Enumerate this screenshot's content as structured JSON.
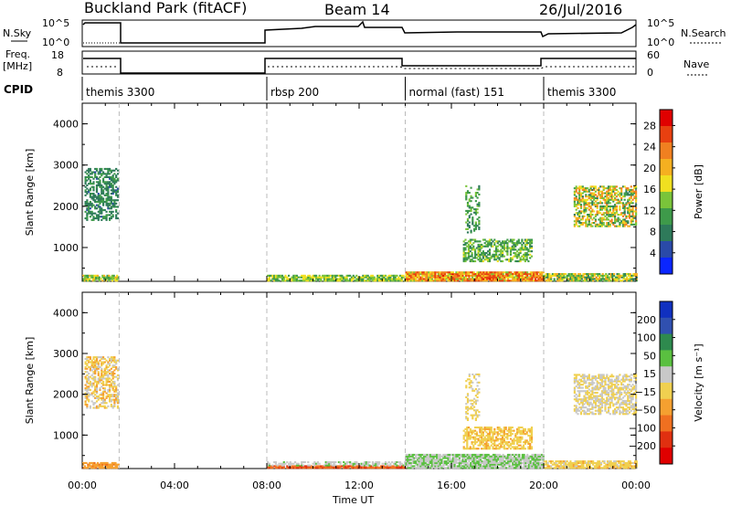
{
  "header": {
    "station": "Buckland Park (fitACF)",
    "beam": "Beam 14",
    "date": "26/Jul/2016"
  },
  "top_labels": {
    "nsky": "N.Sky",
    "nsky_top": "10^5",
    "nsky_bottom": "10^0",
    "freq_line1": "Freq.",
    "freq_line2": "[MHz]",
    "freq_top": "18",
    "freq_bottom": "8",
    "cpid": "CPID",
    "nsearch": "N.Search",
    "nsearch_top": "10^5",
    "nsearch_bottom": "10^0",
    "nave": "Nave",
    "nave_top": "60",
    "nave_bottom": "0"
  },
  "cpid_segments": [
    {
      "label": "themis 3300",
      "start_h": 0.0,
      "end_h": 1.6
    },
    {
      "label": "rbsp 200",
      "start_h": 8.0,
      "end_h": 14.0
    },
    {
      "label": "normal (fast) 151",
      "start_h": 14.0,
      "end_h": 20.0
    },
    {
      "label": "themis 3300",
      "start_h": 20.0,
      "end_h": 24.0
    }
  ],
  "xaxis": {
    "label": "Time UT",
    "ticks": [
      "00:00",
      "04:00",
      "08:00",
      "12:00",
      "16:00",
      "20:00",
      "00:00"
    ]
  },
  "colors": {
    "power": [
      "#0a26ff",
      "#2a4aa8",
      "#2e7a5a",
      "#3e9a4a",
      "#7ac43a",
      "#f0e020",
      "#f5b020",
      "#f08020",
      "#e84010",
      "#e00000"
    ],
    "velocity": [
      "#1030c0",
      "#3050b0",
      "#2e8a4e",
      "#5ac040",
      "#c8c8c8",
      "#f0d050",
      "#f5a030",
      "#f07020",
      "#e03010",
      "#e00000"
    ]
  },
  "chart_data": [
    {
      "type": "heatmap",
      "title": "Power",
      "ylabel": "Slant Range [km]",
      "ylim": [
        180,
        4500
      ],
      "yticks": [
        "1000",
        "2000",
        "3000",
        "4000"
      ],
      "xlim_hours": [
        0,
        24
      ],
      "colorbar": {
        "label": "Power [dB]",
        "ticks": [
          "4",
          "8",
          "12",
          "16",
          "20",
          "24",
          "28"
        ],
        "range": [
          0,
          31
        ]
      },
      "regions": [
        {
          "t": [
            0.1,
            1.55
          ],
          "r": [
            1650,
            2900
          ],
          "v": [
            6,
            11
          ],
          "density": 0.55
        },
        {
          "t": [
            0.0,
            1.55
          ],
          "r": [
            180,
            320
          ],
          "v": [
            10,
            20
          ],
          "density": 0.8
        },
        {
          "t": [
            8.0,
            14.0
          ],
          "r": [
            180,
            330
          ],
          "v": [
            10,
            18
          ],
          "density": 0.8
        },
        {
          "t": [
            14.0,
            20.0
          ],
          "r": [
            180,
            420
          ],
          "v": [
            14,
            28
          ],
          "density": 0.95
        },
        {
          "t": [
            16.5,
            19.5
          ],
          "r": [
            650,
            1200
          ],
          "v": [
            8,
            16
          ],
          "density": 0.55
        },
        {
          "t": [
            16.6,
            17.2
          ],
          "r": [
            1350,
            2500
          ],
          "v": [
            8,
            14
          ],
          "density": 0.3
        },
        {
          "t": [
            20.0,
            24.0
          ],
          "r": [
            180,
            350
          ],
          "v": [
            8,
            22
          ],
          "density": 0.8
        },
        {
          "t": [
            21.3,
            24.0
          ],
          "r": [
            1500,
            2500
          ],
          "v": [
            8,
            24
          ],
          "density": 0.6
        }
      ]
    },
    {
      "type": "heatmap",
      "title": "Velocity",
      "ylabel": "Slant Range [km]",
      "ylim": [
        180,
        4500
      ],
      "yticks": [
        "1000",
        "2000",
        "3000",
        "4000"
      ],
      "xlim_hours": [
        0,
        24
      ],
      "colorbar": {
        "label": "Velocity [m s⁻¹]",
        "ticks": [
          "200",
          "100",
          "50",
          "15",
          "−15",
          "−50",
          "−100",
          "−200"
        ],
        "range": [
          -250,
          250
        ]
      },
      "regions": [
        {
          "t": [
            0.1,
            1.55
          ],
          "r": [
            1650,
            2900
          ],
          "v": [
            -80,
            40
          ],
          "density": 0.55
        },
        {
          "t": [
            0.0,
            1.55
          ],
          "r": [
            180,
            320
          ],
          "v": [
            -110,
            -60
          ],
          "density": 0.8
        },
        {
          "t": [
            8.0,
            14.0
          ],
          "r": [
            180,
            240
          ],
          "v": [
            -180,
            -120
          ],
          "density": 0.9
        },
        {
          "t": [
            8.0,
            14.0
          ],
          "r": [
            240,
            360
          ],
          "v": [
            20,
            60
          ],
          "density": 0.55
        },
        {
          "t": [
            14.0,
            20.0
          ],
          "r": [
            180,
            520
          ],
          "v": [
            15,
            80
          ],
          "density": 0.9
        },
        {
          "t": [
            16.5,
            19.5
          ],
          "r": [
            650,
            1200
          ],
          "v": [
            -70,
            0
          ],
          "density": 0.6
        },
        {
          "t": [
            16.6,
            17.2
          ],
          "r": [
            1350,
            2500
          ],
          "v": [
            -20,
            10
          ],
          "density": 0.3
        },
        {
          "t": [
            20.0,
            24.0
          ],
          "r": [
            180,
            350
          ],
          "v": [
            -60,
            10
          ],
          "density": 0.8
        },
        {
          "t": [
            21.3,
            24.0
          ],
          "r": [
            1500,
            2500
          ],
          "v": [
            -15,
            15
          ],
          "density": 0.6
        }
      ]
    }
  ]
}
